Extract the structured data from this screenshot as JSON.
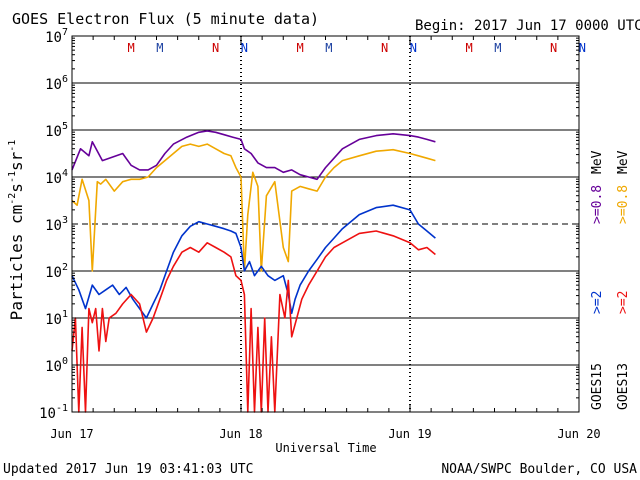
{
  "header": {
    "title": "GOES Electron Flux (5 minute data)",
    "begin": "Begin: 2017 Jun 17 0000 UTC"
  },
  "footer": {
    "updated": "Updated 2017 Jun 19 03:41:03 UTC",
    "credit": "NOAA/SWPC Boulder, CO USA"
  },
  "colors": {
    "purple": "#660099",
    "orange": "#f0a800",
    "blue": "#0033cc",
    "red": "#ee1111",
    "marker_m": "#cc0000",
    "marker_n_red": "#cc0000",
    "marker_n_blue": "#0033cc",
    "marker_m_blue": "#1a3fa0"
  },
  "markers": [
    {
      "label": "M",
      "x": 0.35,
      "color": "marker_m"
    },
    {
      "label": "M",
      "x": 0.52,
      "color": "marker_m_blue"
    },
    {
      "label": "N",
      "x": 0.85,
      "color": "marker_n_red"
    },
    {
      "label": "N",
      "x": 1.02,
      "color": "marker_n_blue"
    },
    {
      "label": "M",
      "x": 1.35,
      "color": "marker_m"
    },
    {
      "label": "M",
      "x": 1.52,
      "color": "marker_m_blue"
    },
    {
      "label": "N",
      "x": 1.85,
      "color": "marker_n_red"
    },
    {
      "label": "N",
      "x": 2.02,
      "color": "marker_n_blue"
    },
    {
      "label": "M",
      "x": 2.35,
      "color": "marker_m"
    },
    {
      "label": "M",
      "x": 2.52,
      "color": "marker_m_blue"
    },
    {
      "label": "N",
      "x": 2.85,
      "color": "marker_n_red"
    },
    {
      "label": "N",
      "x": 3.02,
      "color": "marker_n_blue"
    }
  ],
  "legend": {
    "left_col": {
      "sat": "GOES15",
      "e2": ">=2",
      "e08": ">=0.8",
      "unit": "MeV"
    },
    "right_col": {
      "sat": "GOES13",
      "e2": ">=2",
      "e08": ">=0.8",
      "unit": "MeV"
    }
  },
  "chart_data": {
    "type": "line",
    "title": "GOES Electron Flux (5 minute data)",
    "xlabel": "Universal Time",
    "ylabel": "Particles cm-2 s-1 sr-1",
    "ylabel_parts": {
      "base": "Particles cm",
      "exp1": "-2",
      "s": "s",
      "exp2": "-1",
      "sr": "sr",
      "exp3": "-1"
    },
    "yscale": "log",
    "xlim": [
      0,
      3
    ],
    "ylim_exp": [
      -1,
      7
    ],
    "x_unit": "days since 2017 Jun 17 00:00 UTC",
    "x_ticks": [
      {
        "value": 0,
        "label": "Jun 17"
      },
      {
        "value": 1,
        "label": "Jun 18"
      },
      {
        "value": 2,
        "label": "Jun 19"
      },
      {
        "value": 3,
        "label": "Jun 20"
      }
    ],
    "y_ticks": [
      {
        "exp": -1,
        "label": "10",
        "sup": "-1"
      },
      {
        "exp": 0,
        "label": "10",
        "sup": "0"
      },
      {
        "exp": 1,
        "label": "10",
        "sup": "1"
      },
      {
        "exp": 2,
        "label": "10",
        "sup": "2"
      },
      {
        "exp": 3,
        "label": "10",
        "sup": "3"
      },
      {
        "exp": 4,
        "label": "10",
        "sup": "4"
      },
      {
        "exp": 5,
        "label": "10",
        "sup": "5"
      },
      {
        "exp": 6,
        "label": "10",
        "sup": "6"
      },
      {
        "exp": 7,
        "label": "10",
        "sup": "7"
      }
    ],
    "solid_lines_exp": [
      0,
      1,
      2,
      4,
      5,
      6
    ],
    "dashed_lines_exp": [
      3
    ],
    "series": [
      {
        "name": "GOES15 >=0.8 MeV",
        "color": "purple",
        "x": [
          0.0,
          0.05,
          0.1,
          0.12,
          0.18,
          0.22,
          0.3,
          0.35,
          0.4,
          0.45,
          0.5,
          0.55,
          0.6,
          0.68,
          0.75,
          0.8,
          0.85,
          0.9,
          0.95,
          1.0,
          1.02,
          1.06,
          1.1,
          1.15,
          1.2,
          1.25,
          1.3,
          1.35,
          1.4,
          1.45,
          1.5,
          1.55,
          1.6,
          1.7,
          1.8,
          1.9,
          1.95,
          2.0,
          2.05,
          2.1,
          2.15
        ],
        "values_log": [
          4.15,
          4.6,
          4.45,
          4.75,
          4.35,
          4.4,
          4.5,
          4.25,
          4.15,
          4.15,
          4.25,
          4.5,
          4.7,
          4.85,
          4.95,
          4.98,
          4.95,
          4.9,
          4.85,
          4.8,
          4.6,
          4.5,
          4.3,
          4.2,
          4.2,
          4.1,
          4.15,
          4.05,
          4.0,
          3.95,
          4.2,
          4.4,
          4.6,
          4.8,
          4.88,
          4.92,
          4.9,
          4.88,
          4.85,
          4.8,
          4.75
        ]
      },
      {
        "name": "GOES13 >=0.8 MeV",
        "color": "orange",
        "x": [
          0.0,
          0.03,
          0.06,
          0.1,
          0.12,
          0.15,
          0.17,
          0.2,
          0.25,
          0.3,
          0.35,
          0.4,
          0.45,
          0.5,
          0.55,
          0.6,
          0.65,
          0.7,
          0.75,
          0.8,
          0.85,
          0.9,
          0.94,
          0.97,
          1.0,
          1.02,
          1.04,
          1.07,
          1.1,
          1.12,
          1.15,
          1.2,
          1.25,
          1.28,
          1.3,
          1.35,
          1.4,
          1.45,
          1.5,
          1.55,
          1.6,
          1.7,
          1.8,
          1.9,
          2.0,
          2.05,
          2.1,
          2.15
        ],
        "values_log": [
          3.5,
          3.4,
          3.95,
          3.5,
          2.0,
          3.9,
          3.85,
          3.95,
          3.7,
          3.9,
          3.95,
          3.95,
          4.0,
          4.2,
          4.35,
          4.5,
          4.65,
          4.7,
          4.65,
          4.7,
          4.6,
          4.5,
          4.45,
          4.2,
          4.0,
          2.0,
          3.2,
          4.1,
          3.8,
          2.0,
          3.6,
          3.9,
          2.5,
          2.2,
          3.7,
          3.8,
          3.75,
          3.7,
          4.0,
          4.2,
          4.35,
          4.45,
          4.55,
          4.58,
          4.5,
          4.45,
          4.4,
          4.35
        ]
      },
      {
        "name": "GOES15 >=2 MeV",
        "color": "blue",
        "x": [
          0.0,
          0.04,
          0.08,
          0.12,
          0.16,
          0.2,
          0.24,
          0.28,
          0.32,
          0.36,
          0.4,
          0.44,
          0.48,
          0.52,
          0.56,
          0.6,
          0.65,
          0.7,
          0.75,
          0.8,
          0.85,
          0.9,
          0.94,
          0.97,
          1.0,
          1.02,
          1.05,
          1.08,
          1.12,
          1.16,
          1.2,
          1.25,
          1.28,
          1.3,
          1.32,
          1.35,
          1.4,
          1.45,
          1.5,
          1.55,
          1.6,
          1.7,
          1.8,
          1.9,
          2.0,
          2.05,
          2.1,
          2.15
        ],
        "values_log": [
          1.9,
          1.6,
          1.2,
          1.7,
          1.5,
          1.6,
          1.7,
          1.5,
          1.65,
          1.4,
          1.2,
          1.0,
          1.3,
          1.6,
          2.0,
          2.4,
          2.75,
          2.95,
          3.05,
          3.0,
          2.95,
          2.9,
          2.85,
          2.8,
          2.5,
          2.0,
          2.2,
          1.9,
          2.1,
          1.9,
          1.8,
          1.9,
          1.5,
          1.1,
          1.4,
          1.7,
          2.0,
          2.25,
          2.5,
          2.7,
          2.9,
          3.2,
          3.35,
          3.4,
          3.3,
          3.0,
          2.85,
          2.7
        ]
      },
      {
        "name": "GOES13 >=2 MeV",
        "color": "red",
        "x": [
          0.0,
          0.02,
          0.04,
          0.06,
          0.08,
          0.1,
          0.12,
          0.14,
          0.16,
          0.18,
          0.2,
          0.22,
          0.26,
          0.3,
          0.35,
          0.4,
          0.44,
          0.48,
          0.52,
          0.56,
          0.6,
          0.65,
          0.7,
          0.75,
          0.8,
          0.85,
          0.9,
          0.94,
          0.97,
          1.0,
          1.02,
          1.04,
          1.06,
          1.08,
          1.1,
          1.12,
          1.14,
          1.16,
          1.18,
          1.2,
          1.23,
          1.26,
          1.28,
          1.3,
          1.33,
          1.36,
          1.4,
          1.45,
          1.5,
          1.55,
          1.6,
          1.7,
          1.8,
          1.9,
          2.0,
          2.05,
          2.1,
          2.15
        ],
        "values_log": [
          0.3,
          1.0,
          -1.0,
          0.8,
          -1.0,
          1.2,
          0.9,
          1.2,
          0.3,
          1.2,
          0.5,
          1.0,
          1.1,
          1.3,
          1.5,
          1.3,
          0.7,
          1.0,
          1.4,
          1.8,
          2.1,
          2.4,
          2.5,
          2.4,
          2.6,
          2.5,
          2.4,
          2.3,
          1.9,
          1.8,
          1.5,
          -1.0,
          1.2,
          -1.0,
          0.8,
          -1.0,
          1.0,
          -1.0,
          0.6,
          -1.0,
          1.5,
          1.0,
          1.8,
          0.6,
          1.0,
          1.4,
          1.7,
          2.0,
          2.3,
          2.5,
          2.6,
          2.8,
          2.85,
          2.75,
          2.6,
          2.45,
          2.5,
          2.35
        ]
      }
    ]
  }
}
